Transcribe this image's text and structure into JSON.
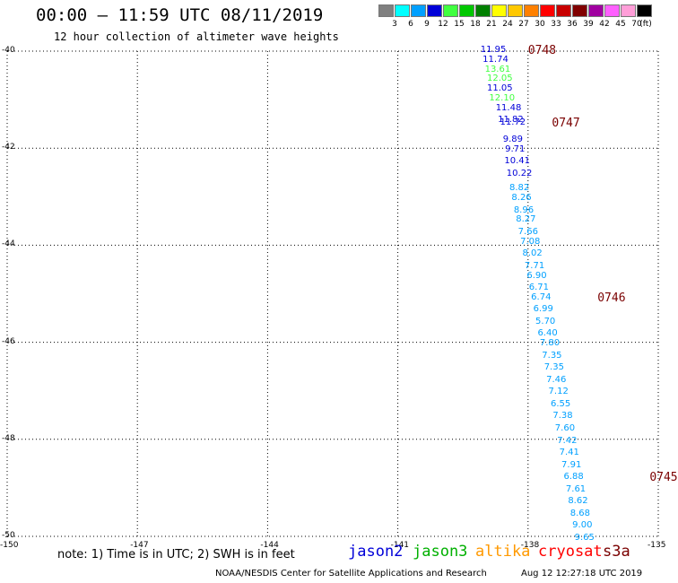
{
  "header": {
    "title": "00:00 – 11:59 UTC 08/11/2019",
    "subtitle": "12 hour collection of altimeter wave heights"
  },
  "legend": {
    "unit": "(ft)",
    "bins": [
      {
        "label": "3",
        "color": "#808080"
      },
      {
        "label": "6",
        "color": "#00ffff"
      },
      {
        "label": "9",
        "color": "#00a0ff"
      },
      {
        "label": "12",
        "color": "#0000d8"
      },
      {
        "label": "15",
        "color": "#40ff40"
      },
      {
        "label": "18",
        "color": "#00c800"
      },
      {
        "label": "21",
        "color": "#008000"
      },
      {
        "label": "24",
        "color": "#ffff00"
      },
      {
        "label": "27",
        "color": "#ffc800"
      },
      {
        "label": "30",
        "color": "#ff8000"
      },
      {
        "label": "33",
        "color": "#ff0000"
      },
      {
        "label": "36",
        "color": "#c80000"
      },
      {
        "label": "39",
        "color": "#800000"
      },
      {
        "label": "42",
        "color": "#a000a0"
      },
      {
        "label": "45",
        "color": "#ff60ff"
      },
      {
        "label": "70",
        "color": "#ff9ed8"
      },
      {
        "label": "",
        "color": "#000000"
      }
    ]
  },
  "axes": {
    "lat_ticks": [
      "-40",
      "-42",
      "-44",
      "-46",
      "-48",
      "-50"
    ],
    "lon_ticks": [
      "-150",
      "-147",
      "-144",
      "-141",
      "-138",
      "-135"
    ]
  },
  "chart_data": {
    "type": "scatter",
    "x_axis": "longitude",
    "y_axis": "latitude",
    "xlim": [
      -150,
      -135
    ],
    "ylim": [
      -50,
      -40
    ],
    "series": [
      {
        "name": "jason2",
        "color": "#0000d8",
        "points": [
          {
            "x": -138.8,
            "y": -40.0,
            "label": "11.95"
          },
          {
            "x": -138.75,
            "y": -40.2,
            "label": "11.74"
          },
          {
            "x": -138.45,
            "y": -41.2,
            "label": "11.48"
          },
          {
            "x": -138.4,
            "y": -41.45,
            "label": "11.82"
          },
          {
            "x": -138.35,
            "y": -41.5,
            "label": "11.72"
          },
          {
            "x": -138.35,
            "y": -41.85,
            "label": "9.89"
          },
          {
            "x": -138.3,
            "y": -42.05,
            "label": "9.71"
          },
          {
            "x": -138.25,
            "y": -42.3,
            "label": "10.41"
          },
          {
            "x": -138.2,
            "y": -42.55,
            "label": "10.22"
          },
          {
            "x": -138.65,
            "y": -40.8,
            "label": "11.05"
          }
        ]
      },
      {
        "name": "jason3",
        "color": "#40ff40",
        "points": [
          {
            "x": -138.7,
            "y": -40.4,
            "label": "13.61"
          },
          {
            "x": -138.65,
            "y": -40.6,
            "label": "12.05"
          },
          {
            "x": -138.6,
            "y": -41.0,
            "label": "12.10"
          }
        ]
      },
      {
        "name": "cryosat",
        "color": "#00a0ff",
        "points": [
          {
            "x": -138.2,
            "y": -42.85,
            "label": "8.82"
          },
          {
            "x": -138.15,
            "y": -43.05,
            "label": "8.26"
          },
          {
            "x": -138.1,
            "y": -43.3,
            "label": "8.96"
          },
          {
            "x": -138.05,
            "y": -43.5,
            "label": "8.27"
          },
          {
            "x": -138.0,
            "y": -43.75,
            "label": "7.66"
          },
          {
            "x": -137.95,
            "y": -43.95,
            "label": "7.08"
          },
          {
            "x": -137.9,
            "y": -44.2,
            "label": "8.02"
          },
          {
            "x": -137.85,
            "y": -44.45,
            "label": "7.71"
          },
          {
            "x": -137.8,
            "y": -44.65,
            "label": "6.90"
          },
          {
            "x": -137.75,
            "y": -44.9,
            "label": "6.71"
          },
          {
            "x": -137.7,
            "y": -45.1,
            "label": "6.74"
          },
          {
            "x": -137.65,
            "y": -45.35,
            "label": "6.99"
          },
          {
            "x": -137.6,
            "y": -45.6,
            "label": "5.70"
          },
          {
            "x": -137.55,
            "y": -45.85,
            "label": "6.40"
          },
          {
            "x": -137.5,
            "y": -46.05,
            "label": "7.80"
          },
          {
            "x": -137.45,
            "y": -46.3,
            "label": "7.35"
          },
          {
            "x": -137.4,
            "y": -46.55,
            "label": "7.35"
          },
          {
            "x": -137.35,
            "y": -46.8,
            "label": "7.46"
          },
          {
            "x": -137.3,
            "y": -47.05,
            "label": "7.12"
          },
          {
            "x": -137.25,
            "y": -47.3,
            "label": "6.55"
          },
          {
            "x": -137.2,
            "y": -47.55,
            "label": "7.38"
          },
          {
            "x": -137.15,
            "y": -47.8,
            "label": "7.60"
          },
          {
            "x": -137.1,
            "y": -48.05,
            "label": "7.42"
          },
          {
            "x": -137.05,
            "y": -48.3,
            "label": "7.41"
          },
          {
            "x": -137.0,
            "y": -48.55,
            "label": "7.91"
          },
          {
            "x": -136.95,
            "y": -48.8,
            "label": "6.88"
          },
          {
            "x": -136.9,
            "y": -49.05,
            "label": "7.61"
          },
          {
            "x": -136.85,
            "y": -49.3,
            "label": "8.62"
          },
          {
            "x": -136.8,
            "y": -49.55,
            "label": "8.68"
          },
          {
            "x": -136.75,
            "y": -49.8,
            "label": "9.00"
          },
          {
            "x": -136.7,
            "y": -50.05,
            "label": "9.65"
          }
        ]
      }
    ],
    "time_labels": [
      {
        "text": "0748",
        "x": -138.0,
        "y": -40.0
      },
      {
        "text": "0747",
        "x": -137.45,
        "y": -41.5
      },
      {
        "text": "0746",
        "x": -136.4,
        "y": -45.1
      },
      {
        "text": "0745",
        "x": -135.2,
        "y": -48.8
      }
    ]
  },
  "footer": {
    "note": "note: 1) Time is in UTC; 2) SWH is in feet",
    "satellites": [
      {
        "name": "jason2",
        "color": "#0000d8"
      },
      {
        "name": "jason3",
        "color": "#00b000"
      },
      {
        "name": "altika",
        "color": "#ff9900"
      },
      {
        "name": "cryosat",
        "color": "#ff0000"
      },
      {
        "name": "s3a",
        "color": "#7a0000"
      }
    ],
    "credit": "NOAA/NESDIS Center for Satellite Applications and Research",
    "timestamp": "Aug 12 12:27:18 UTC 2019"
  }
}
